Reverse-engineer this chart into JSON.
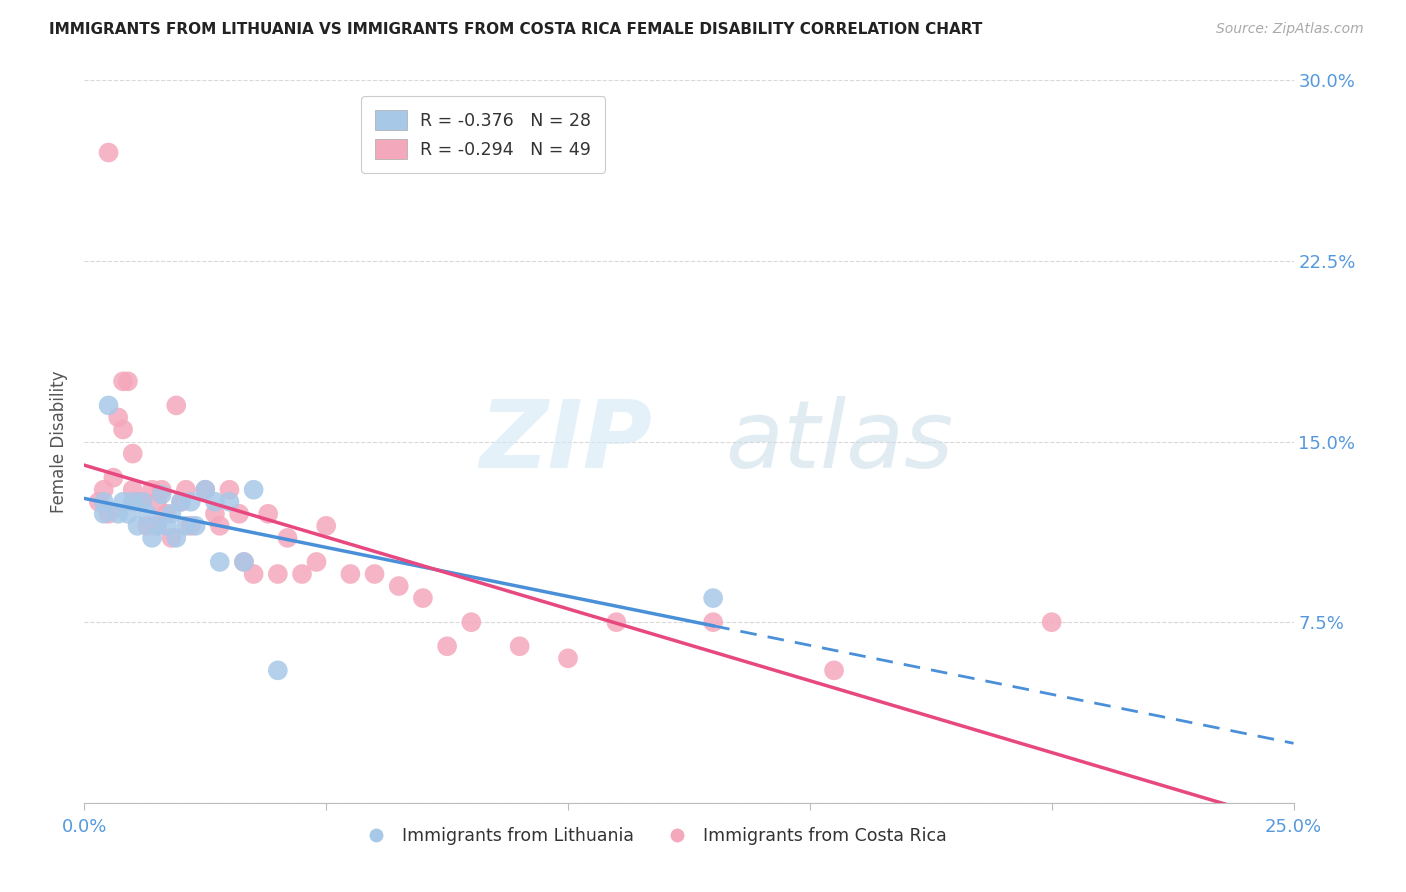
{
  "title": "IMMIGRANTS FROM LITHUANIA VS IMMIGRANTS FROM COSTA RICA FEMALE DISABILITY CORRELATION CHART",
  "source": "Source: ZipAtlas.com",
  "ylabel": "Female Disability",
  "xlim": [
    0.0,
    0.25
  ],
  "ylim": [
    0.0,
    0.3
  ],
  "yticks": [
    0.0,
    0.075,
    0.15,
    0.225,
    0.3
  ],
  "ytick_labels": [
    "",
    "7.5%",
    "15.0%",
    "22.5%",
    "30.0%"
  ],
  "xticks": [
    0.0,
    0.05,
    0.1,
    0.15,
    0.2,
    0.25
  ],
  "xtick_labels": [
    "0.0%",
    "",
    "",
    "",
    "",
    "25.0%"
  ],
  "legend_line1": "R = -0.376   N = 28",
  "legend_line2": "R = -0.294   N = 49",
  "blue_color": "#a8c8e8",
  "pink_color": "#f4a8bc",
  "blue_line_color": "#4a90d9",
  "pink_line_color": "#e84880",
  "tick_label_color": "#5599dd",
  "grid_color": "#d0d0d0",
  "watermark_zip": "ZIP",
  "watermark_atlas": "atlas",
  "lithuania_x": [
    0.004,
    0.004,
    0.005,
    0.007,
    0.008,
    0.009,
    0.01,
    0.011,
    0.012,
    0.013,
    0.014,
    0.015,
    0.016,
    0.017,
    0.018,
    0.019,
    0.02,
    0.021,
    0.022,
    0.023,
    0.025,
    0.027,
    0.028,
    0.03,
    0.033,
    0.035,
    0.04,
    0.13
  ],
  "lithuania_y": [
    0.125,
    0.12,
    0.165,
    0.12,
    0.125,
    0.12,
    0.125,
    0.115,
    0.125,
    0.12,
    0.11,
    0.115,
    0.128,
    0.115,
    0.12,
    0.11,
    0.125,
    0.115,
    0.125,
    0.115,
    0.13,
    0.125,
    0.1,
    0.125,
    0.1,
    0.13,
    0.055,
    0.085
  ],
  "costarica_x": [
    0.003,
    0.004,
    0.005,
    0.006,
    0.007,
    0.008,
    0.008,
    0.009,
    0.01,
    0.01,
    0.011,
    0.012,
    0.013,
    0.014,
    0.015,
    0.015,
    0.016,
    0.017,
    0.018,
    0.019,
    0.02,
    0.021,
    0.022,
    0.025,
    0.027,
    0.028,
    0.03,
    0.032,
    0.033,
    0.035,
    0.038,
    0.04,
    0.042,
    0.045,
    0.048,
    0.05,
    0.055,
    0.06,
    0.065,
    0.07,
    0.075,
    0.08,
    0.09,
    0.1,
    0.11,
    0.13,
    0.155,
    0.2,
    0.005
  ],
  "costarica_y": [
    0.125,
    0.13,
    0.12,
    0.135,
    0.16,
    0.175,
    0.155,
    0.175,
    0.13,
    0.145,
    0.125,
    0.125,
    0.115,
    0.13,
    0.125,
    0.115,
    0.13,
    0.12,
    0.11,
    0.165,
    0.125,
    0.13,
    0.115,
    0.13,
    0.12,
    0.115,
    0.13,
    0.12,
    0.1,
    0.095,
    0.12,
    0.095,
    0.11,
    0.095,
    0.1,
    0.115,
    0.095,
    0.095,
    0.09,
    0.085,
    0.065,
    0.075,
    0.065,
    0.06,
    0.075,
    0.075,
    0.055,
    0.075,
    0.27
  ]
}
